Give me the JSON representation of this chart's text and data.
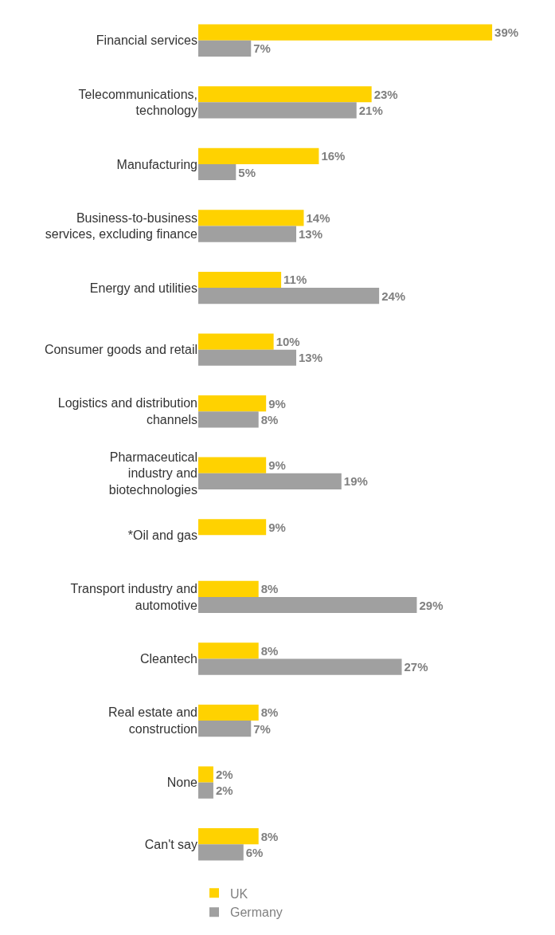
{
  "chart_data": {
    "type": "bar",
    "orientation": "horizontal",
    "categories": [
      "Financial services",
      "Telecommunications,\ntechnology",
      "Manufacturing",
      "Business-to-business\nservices, excluding finance",
      "Energy and utilities",
      "Consumer goods and retail",
      "Logistics and distribution\nchannels",
      "Pharmaceutical\nindustry and\nbiotechnologies",
      "*Oil and gas",
      "Transport industry and\nautomotive",
      "Cleantech",
      "Real estate and\nconstruction",
      "None",
      "Can't say"
    ],
    "series": [
      {
        "name": "UK",
        "color": "#ffd200",
        "values": [
          39,
          23,
          16,
          14,
          11,
          10,
          9,
          9,
          9,
          8,
          8,
          8,
          2,
          8
        ],
        "value_labels": [
          "39%",
          "23%",
          "16%",
          "14%",
          "11%",
          "10%",
          "9%",
          "9%",
          "9%",
          "8%",
          "8%",
          "8%",
          "2%",
          "8%"
        ]
      },
      {
        "name": "Germany",
        "color": "#a0a0a0",
        "values": [
          7,
          21,
          5,
          13,
          24,
          13,
          8,
          19,
          null,
          29,
          27,
          7,
          2,
          6
        ],
        "value_labels": [
          "7%",
          "21%",
          "5%",
          "13%",
          "24%",
          "13%",
          "8%",
          "19%",
          null,
          "29%",
          "27%",
          "7%",
          "2%",
          "6%"
        ]
      }
    ],
    "legend": "bottom"
  }
}
